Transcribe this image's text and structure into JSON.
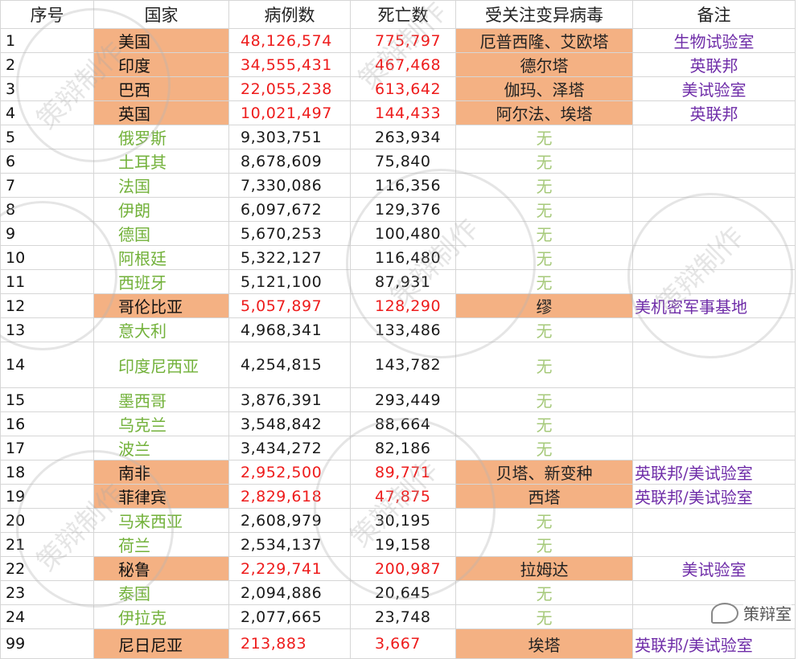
{
  "headers": [
    "序号",
    "国家",
    "病例数",
    "死亡数",
    "受关注变异病毒",
    "备注"
  ],
  "rows": [
    {
      "num": "1",
      "country": "美国",
      "cases": "48,126,574",
      "deaths": "775,797",
      "variant": "厄普西隆、艾欧塔",
      "note": "生物试验室",
      "hl": true
    },
    {
      "num": "2",
      "country": "印度",
      "cases": "34,555,431",
      "deaths": "467,468",
      "variant": "德尔塔",
      "note": "英联邦",
      "hl": true
    },
    {
      "num": "3",
      "country": "巴西",
      "cases": "22,055,238",
      "deaths": "613,642",
      "variant": "伽玛、泽塔",
      "note": "美试验室",
      "hl": true
    },
    {
      "num": "4",
      "country": "英国",
      "cases": "10,021,497",
      "deaths": "144,433",
      "variant": "阿尔法、埃塔",
      "note": "英联邦",
      "hl": true
    },
    {
      "num": "5",
      "country": "俄罗斯",
      "cases": "9,303,751",
      "deaths": "263,934",
      "variant": "无",
      "note": "",
      "hl": false
    },
    {
      "num": "6",
      "country": "土耳其",
      "cases": "8,678,609",
      "deaths": "75,840",
      "variant": "无",
      "note": "",
      "hl": false
    },
    {
      "num": "7",
      "country": "法国",
      "cases": "7,330,086",
      "deaths": "116,356",
      "variant": "无",
      "note": "",
      "hl": false
    },
    {
      "num": "8",
      "country": "伊朗",
      "cases": "6,097,672",
      "deaths": "129,376",
      "variant": "无",
      "note": "",
      "hl": false
    },
    {
      "num": "9",
      "country": "德国",
      "cases": "5,670,253",
      "deaths": "100,480",
      "variant": "无",
      "note": "",
      "hl": false
    },
    {
      "num": "10",
      "country": "阿根廷",
      "cases": "5,322,127",
      "deaths": "116,480",
      "variant": "无",
      "note": "",
      "hl": false
    },
    {
      "num": "11",
      "country": "西班牙",
      "cases": "5,121,100",
      "deaths": "87,931",
      "variant": "无",
      "note": "",
      "hl": false
    },
    {
      "num": "12",
      "country": "哥伦比亚",
      "cases": "5,057,897",
      "deaths": "128,290",
      "variant": "缪",
      "note": "美机密军事基地",
      "hl": true
    },
    {
      "num": "13",
      "country": "意大利",
      "cases": "4,968,341",
      "deaths": "133,486",
      "variant": "无",
      "note": "",
      "hl": false
    },
    {
      "num": "14",
      "country": "印度尼西亚",
      "cases": "4,254,815",
      "deaths": "143,782",
      "variant": "无",
      "note": "",
      "hl": false,
      "tall": true
    },
    {
      "num": "15",
      "country": "墨西哥",
      "cases": "3,876,391",
      "deaths": "293,449",
      "variant": "无",
      "note": "",
      "hl": false
    },
    {
      "num": "16",
      "country": "乌克兰",
      "cases": "3,548,842",
      "deaths": "88,664",
      "variant": "无",
      "note": "",
      "hl": false
    },
    {
      "num": "17",
      "country": "波兰",
      "cases": "3,434,272",
      "deaths": "82,186",
      "variant": "无",
      "note": "",
      "hl": false
    },
    {
      "num": "18",
      "country": "南非",
      "cases": "2,952,500",
      "deaths": "89,771",
      "variant": "贝塔、新变种",
      "note": "英联邦/美试验室",
      "hl": true
    },
    {
      "num": "19",
      "country": "菲律宾",
      "cases": "2,829,618",
      "deaths": "47,875",
      "variant": "西塔",
      "note": "英联邦/美试验室",
      "hl": true
    },
    {
      "num": "20",
      "country": "马来西亚",
      "cases": "2,608,979",
      "deaths": "30,195",
      "variant": "无",
      "note": "",
      "hl": false
    },
    {
      "num": "21",
      "country": "荷兰",
      "cases": "2,534,137",
      "deaths": "19,158",
      "variant": "无",
      "note": "",
      "hl": false
    },
    {
      "num": "22",
      "country": "秘鲁",
      "cases": "2,229,741",
      "deaths": "200,987",
      "variant": "拉姆达",
      "note": "美试验室",
      "hl": true
    },
    {
      "num": "23",
      "country": "泰国",
      "cases": "2,094,886",
      "deaths": "20,645",
      "variant": "无",
      "note": "",
      "hl": false
    },
    {
      "num": "24",
      "country": "伊拉克",
      "cases": "2,077,665",
      "deaths": "23,748",
      "variant": "无",
      "note": "",
      "hl": false
    },
    {
      "num": "99",
      "country": "尼日尼亚",
      "cases": "213,883",
      "deaths": "3,667",
      "variant": "埃塔",
      "note": "英联邦/美试验室",
      "hl": true
    }
  ],
  "watermark": "策辩制作",
  "logo_text": "策辩室",
  "colors": {
    "highlight": "#f4b183",
    "red_number": "#ee1c1c",
    "green_country": "#72b13a",
    "none_variant": "#a6c97a",
    "note_purple": "#6f2da8"
  }
}
